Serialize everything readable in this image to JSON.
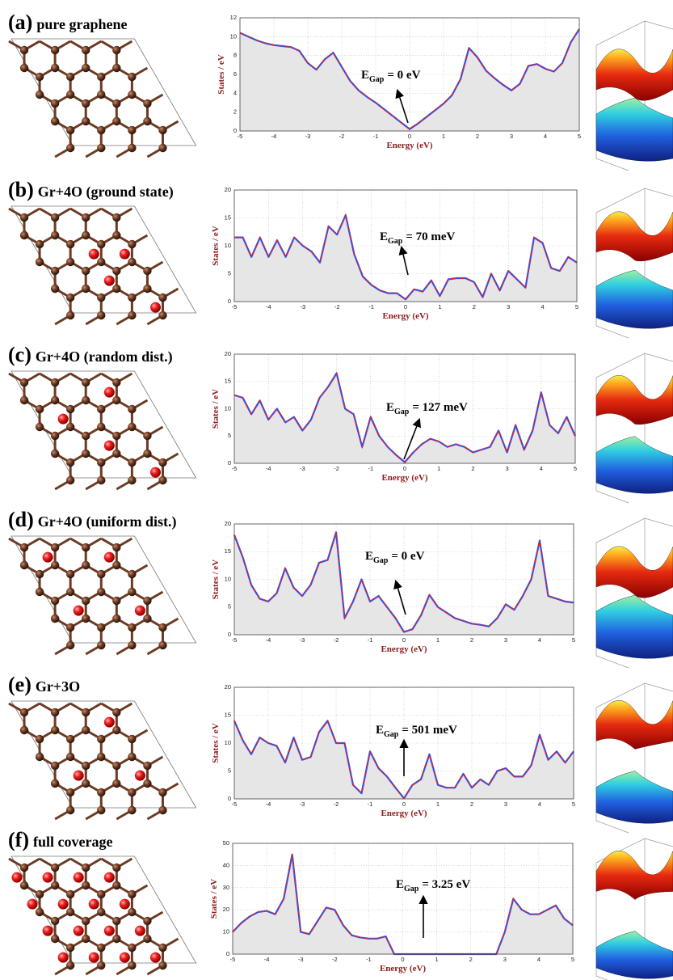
{
  "chart_data": [
    {
      "type": "line",
      "label": "(a)",
      "title": "pure graphene",
      "xlabel": "Energy (eV)",
      "ylabel": "States / eV",
      "annotation": {
        "symbol": "E",
        "subscript": "Gap",
        "text": "= 0 eV"
      },
      "x": [
        -5,
        -4.75,
        -4.5,
        -4.25,
        -4,
        -3.75,
        -3.5,
        -3.25,
        -3,
        -2.75,
        -2.5,
        -2.25,
        -2,
        -1.75,
        -1.5,
        -1.25,
        -1,
        -0.75,
        -0.5,
        -0.25,
        0,
        0.25,
        0.5,
        0.75,
        1,
        1.25,
        1.5,
        1.75,
        2,
        2.25,
        2.5,
        2.75,
        3,
        3.25,
        3.5,
        3.75,
        4,
        4.25,
        4.5,
        4.75,
        5
      ],
      "values": [
        10.4,
        10.0,
        9.6,
        9.3,
        9.1,
        9.0,
        8.9,
        8.5,
        7.2,
        6.5,
        7.6,
        8.3,
        6.8,
        5.3,
        4.3,
        3.6,
        3.0,
        2.3,
        1.6,
        0.9,
        0.2,
        0.8,
        1.5,
        2.2,
        2.9,
        3.8,
        5.5,
        8.8,
        7.8,
        6.4,
        5.6,
        4.9,
        4.3,
        5.0,
        6.9,
        7.1,
        6.6,
        6.3,
        7.2,
        9.4,
        10.8
      ],
      "color": "#3a4fe6",
      "dash_color": "#e3231c",
      "fill": "#e6e6e6",
      "xlim": [
        -5,
        5
      ],
      "ylim": [
        0,
        12
      ],
      "xticks": [
        -5,
        -4,
        -3,
        -2,
        -1,
        0,
        1,
        2,
        3,
        4,
        5
      ],
      "yticks": [
        0,
        2,
        4,
        6,
        8,
        10,
        12
      ],
      "grid": true
    },
    {
      "type": "line",
      "label": "(b)",
      "title": "Gr+4O (ground state)",
      "xlabel": "Energy (eV)",
      "ylabel": "States / eV",
      "annotation": {
        "symbol": "E",
        "subscript": "Gap",
        "text": "= 70 meV"
      },
      "x": [
        -5,
        -4.75,
        -4.5,
        -4.25,
        -4,
        -3.75,
        -3.5,
        -3.25,
        -3,
        -2.75,
        -2.5,
        -2.25,
        -2,
        -1.75,
        -1.5,
        -1.25,
        -1,
        -0.75,
        -0.5,
        -0.25,
        0,
        0.25,
        0.5,
        0.75,
        1,
        1.25,
        1.5,
        1.75,
        2,
        2.25,
        2.5,
        2.75,
        3,
        3.25,
        3.5,
        3.75,
        4,
        4.25,
        4.5,
        4.75,
        5
      ],
      "values": [
        11.5,
        11.5,
        8,
        11.5,
        8,
        11,
        8,
        11.5,
        10,
        9,
        7,
        13.5,
        12,
        15.5,
        8.5,
        4.5,
        3,
        2,
        1.5,
        1.5,
        0.4,
        2.2,
        1.8,
        3.8,
        1,
        4,
        4.2,
        4.2,
        3.5,
        0.8,
        5,
        2,
        5.5,
        4,
        2.5,
        11.5,
        10.5,
        6,
        5.5,
        8,
        7
      ],
      "color": "#3a4fe6",
      "dash_color": "#e3231c",
      "fill": "#e6e6e6",
      "xlim": [
        -5,
        5
      ],
      "ylim": [
        0,
        20
      ],
      "xticks": [
        -5,
        -4,
        -3,
        -2,
        -1,
        0,
        1,
        2,
        3,
        4,
        5
      ],
      "yticks": [
        0,
        5,
        10,
        15,
        20
      ],
      "grid": true
    },
    {
      "type": "line",
      "label": "(c)",
      "title": "Gr+4O (random dist.)",
      "xlabel": "Energy (eV)",
      "ylabel": "States / eV",
      "annotation": {
        "symbol": "E",
        "subscript": "Gap",
        "text": "= 127 meV"
      },
      "x": [
        -5,
        -4.75,
        -4.5,
        -4.25,
        -4,
        -3.75,
        -3.5,
        -3.25,
        -3,
        -2.75,
        -2.5,
        -2.25,
        -2,
        -1.75,
        -1.5,
        -1.25,
        -1,
        -0.75,
        -0.5,
        -0.25,
        0,
        0.25,
        0.5,
        0.75,
        1,
        1.25,
        1.5,
        1.75,
        2,
        2.25,
        2.5,
        2.75,
        3,
        3.25,
        3.5,
        3.75,
        4,
        4.25,
        4.5,
        4.75,
        5
      ],
      "values": [
        12.5,
        12,
        9,
        11.5,
        8,
        10,
        7.5,
        8.5,
        6,
        8,
        12,
        14,
        16.5,
        10,
        9,
        3,
        8.5,
        5,
        3,
        1.5,
        0.2,
        2,
        3.5,
        4.5,
        4,
        3,
        3.5,
        3,
        2,
        2.5,
        3,
        6,
        2,
        7,
        2.5,
        6,
        13,
        7,
        5.5,
        8.5,
        5
      ],
      "color": "#3a4fe6",
      "dash_color": "#e3231c",
      "fill": "#e6e6e6",
      "xlim": [
        -5,
        5
      ],
      "ylim": [
        0,
        20
      ],
      "xticks": [
        -5,
        -4,
        -3,
        -2,
        -1,
        0,
        1,
        2,
        3,
        4,
        5
      ],
      "yticks": [
        0,
        5,
        10,
        15,
        20
      ],
      "grid": true
    },
    {
      "type": "line",
      "label": "(d)",
      "title": "Gr+4O (uniform dist.)",
      "xlabel": "Energy (eV)",
      "ylabel": "States / eV",
      "annotation": {
        "symbol": "E",
        "subscript": "Gap",
        "text": "= 0 eV"
      },
      "x": [
        -5,
        -4.75,
        -4.5,
        -4.25,
        -4,
        -3.75,
        -3.5,
        -3.25,
        -3,
        -2.75,
        -2.5,
        -2.25,
        -2,
        -1.75,
        -1.5,
        -1.25,
        -1,
        -0.75,
        -0.5,
        -0.25,
        0,
        0.25,
        0.5,
        0.75,
        1,
        1.25,
        1.5,
        1.75,
        2,
        2.25,
        2.5,
        2.75,
        3,
        3.25,
        3.5,
        3.75,
        4,
        4.25,
        4.5,
        4.75,
        5
      ],
      "values": [
        18,
        14,
        9,
        6.5,
        6,
        7.5,
        12,
        8.5,
        7,
        9,
        13,
        13.5,
        18.5,
        3,
        6,
        10,
        6,
        7,
        5,
        3,
        0.5,
        1,
        3.5,
        7.2,
        5,
        4,
        3,
        2.5,
        2,
        1.8,
        1.5,
        3,
        5.5,
        4.5,
        7,
        10,
        17,
        7,
        6.5,
        6,
        5.8
      ],
      "color": "#3a4fe6",
      "dash_color": "#e3231c",
      "fill": "#e6e6e6",
      "xlim": [
        -5,
        5
      ],
      "ylim": [
        0,
        20
      ],
      "xticks": [
        -5,
        -4,
        -3,
        -2,
        -1,
        0,
        1,
        2,
        3,
        4,
        5
      ],
      "yticks": [
        0,
        5,
        10,
        15,
        20
      ],
      "grid": true
    },
    {
      "type": "line",
      "label": "(e)",
      "title": "Gr+3O",
      "xlabel": "Energy (eV)",
      "ylabel": "States / eV",
      "annotation": {
        "symbol": "E",
        "subscript": "Gap",
        "text": "= 501 meV"
      },
      "x": [
        -5,
        -4.75,
        -4.5,
        -4.25,
        -4,
        -3.75,
        -3.5,
        -3.25,
        -3,
        -2.75,
        -2.5,
        -2.25,
        -2,
        -1.75,
        -1.5,
        -1.25,
        -1,
        -0.75,
        -0.5,
        -0.25,
        0,
        0.25,
        0.5,
        0.75,
        1,
        1.25,
        1.5,
        1.75,
        2,
        2.25,
        2.5,
        2.75,
        3,
        3.25,
        3.5,
        3.75,
        4,
        4.25,
        4.5,
        4.75,
        5
      ],
      "values": [
        14,
        10.5,
        8,
        11,
        10,
        9.5,
        6.5,
        11,
        7,
        7.5,
        12,
        14,
        10,
        10,
        2.5,
        1,
        8.5,
        5.5,
        4,
        2,
        0.1,
        2.5,
        3.5,
        8,
        2.5,
        2,
        2,
        4.5,
        2,
        3.5,
        2.5,
        5,
        5.5,
        4,
        4,
        6,
        11.5,
        7,
        8.5,
        6.5,
        8.5
      ],
      "color": "#3a4fe6",
      "dash_color": "#e3231c",
      "fill": "#e6e6e6",
      "xlim": [
        -5,
        5
      ],
      "ylim": [
        0,
        20
      ],
      "xticks": [
        -5,
        -4,
        -3,
        -2,
        -1,
        0,
        1,
        2,
        3,
        4,
        5
      ],
      "yticks": [
        0,
        5,
        10,
        15,
        20
      ],
      "grid": true
    },
    {
      "type": "line",
      "label": "(f)",
      "title": "full coverage",
      "xlabel": "Energy (eV)",
      "ylabel": "States / eV",
      "annotation": {
        "symbol": "E",
        "subscript": "Gap",
        "text": "= 3.25 eV"
      },
      "x": [
        -5,
        -4.75,
        -4.5,
        -4.25,
        -4,
        -3.75,
        -3.5,
        -3.25,
        -3,
        -2.75,
        -2.5,
        -2.25,
        -2,
        -1.75,
        -1.5,
        -1.25,
        -1,
        -0.75,
        -0.5,
        -0.25,
        0,
        0.25,
        0.5,
        0.75,
        1,
        1.25,
        1.5,
        1.75,
        2,
        2.25,
        2.5,
        2.75,
        3,
        3.25,
        3.5,
        3.75,
        4,
        4.25,
        4.5,
        4.75,
        5
      ],
      "values": [
        10,
        14,
        17,
        19,
        19.5,
        18,
        25,
        45,
        10,
        9,
        15,
        21,
        20,
        13,
        8.5,
        7.5,
        7,
        7,
        8,
        0,
        0,
        0,
        0,
        0,
        0,
        0,
        0,
        0,
        0,
        0,
        0,
        0,
        10,
        25,
        20,
        18,
        18,
        20,
        22,
        16,
        13
      ],
      "color": "#3a4fe6",
      "dash_color": "#e3231c",
      "fill": "#e6e6e6",
      "xlim": [
        -5,
        5
      ],
      "ylim": [
        0,
        50
      ],
      "xticks": [
        -5,
        -4,
        -3,
        -2,
        -1,
        0,
        1,
        2,
        3,
        4,
        5
      ],
      "yticks": [
        0,
        10,
        20,
        30,
        40,
        50
      ],
      "grid": true
    }
  ]
}
